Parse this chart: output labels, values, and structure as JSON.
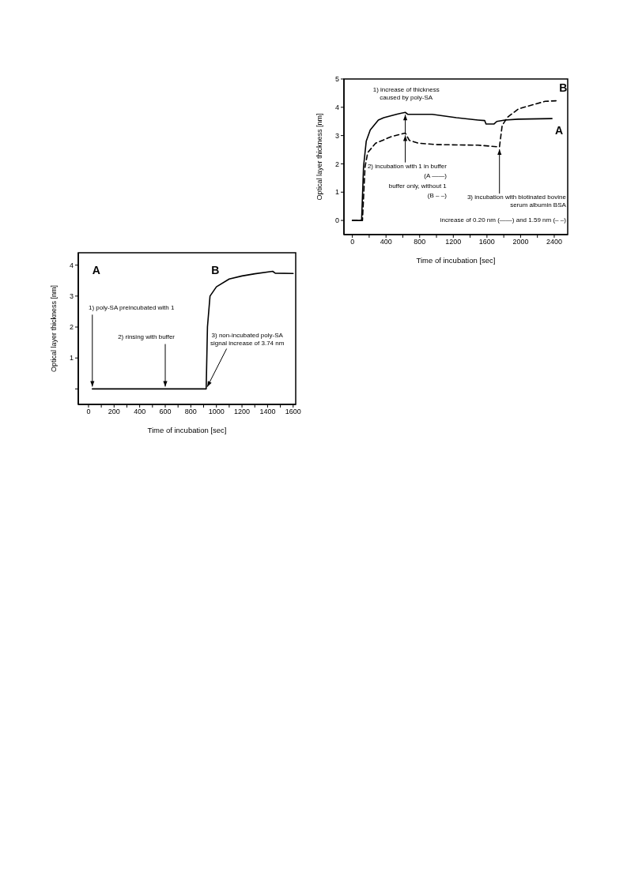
{
  "chart_data": [
    {
      "type": "line",
      "xlabel": "Time of incubation [sec]",
      "ylabel": "Optical layer thickness [nm]",
      "xlim": [
        -100,
        2560
      ],
      "xticks": [
        0,
        {
          "value": 200,
          "label": null
        },
        400,
        {
          "value": 600,
          "label": null
        },
        800,
        {
          "value": 1000,
          "label": null
        },
        1200,
        {
          "value": 1400,
          "label": null
        },
        1600,
        {
          "value": 1800,
          "label": null
        },
        2000,
        {
          "value": 2200,
          "label": null
        },
        2400
      ],
      "ylim": [
        -0.5,
        5
      ],
      "yticks": [
        0,
        1,
        2,
        3,
        4,
        5
      ],
      "grid": false,
      "marker": "none",
      "series": [
        {
          "name": "A",
          "color": "#000000",
          "line_style": "solid",
          "x": [
            0,
            110,
            133,
            165,
            213,
            309,
            373,
            533,
            629,
            661,
            949,
            1237,
            1493,
            1573,
            1589,
            1685,
            1717,
            1813,
            1973,
            2373
          ],
          "values": [
            0,
            0,
            1.9,
            2.8,
            3.2,
            3.55,
            3.63,
            3.76,
            3.82,
            3.75,
            3.75,
            3.63,
            3.55,
            3.53,
            3.41,
            3.41,
            3.5,
            3.55,
            3.58,
            3.6
          ]
        },
        {
          "name": "B",
          "color": "#000000",
          "line_style": "dashed",
          "x": [
            0,
            120,
            151,
            183,
            277,
            469,
            629,
            677,
            789,
            1013,
            1493,
            1749,
            1781,
            1845,
            1973,
            2133,
            2293,
            2421
          ],
          "values": [
            0,
            0,
            1.9,
            2.4,
            2.73,
            2.97,
            3.09,
            2.83,
            2.73,
            2.68,
            2.66,
            2.6,
            3.36,
            3.65,
            3.94,
            4.08,
            4.21,
            4.23
          ]
        }
      ],
      "annotations": [
        {
          "text": "1) increase of thickness caused by poly-SA",
          "x": 629,
          "y": 3.82
        },
        {
          "text": "2) incubation with 1 in buffer",
          "x": 629,
          "y": 3.09
        },
        "(A ——)",
        "buffer only, without 1",
        "(B – –)",
        {
          "text": "3) incubation with biotinated bovine serum albumin BSA",
          "x": 1749,
          "y": 2.6
        },
        "increase of 0.20 nm (——) and 1.59 nm (– –)"
      ]
    },
    {
      "type": "line",
      "xlabel": "Time of incubation [sec]",
      "ylabel": "Optical layer thickness [nm]",
      "xlim": [
        -80,
        1620
      ],
      "xticks": [
        0,
        {
          "value": 100,
          "label": null
        },
        200,
        {
          "value": 300,
          "label": null
        },
        400,
        {
          "value": 500,
          "label": null
        },
        600,
        {
          "value": 700,
          "label": null
        },
        800,
        {
          "value": 900,
          "label": null
        },
        1000,
        {
          "value": 1100,
          "label": null
        },
        1200,
        {
          "value": 1300,
          "label": null
        },
        1400,
        {
          "value": 1500,
          "label": null
        },
        1600
      ],
      "ylim": [
        -0.5,
        4.4
      ],
      "yticks": [
        {
          "value": 0,
          "label": null
        },
        1,
        2,
        3,
        4
      ],
      "grid": false,
      "marker": "none",
      "series": [
        {
          "color": "#000000",
          "line_style": "solid",
          "x": [
            30,
            300,
            600,
            920,
            930,
            950,
            1000,
            1100,
            1200,
            1300,
            1440,
            1460,
            1600
          ],
          "values": [
            0,
            0,
            0,
            0,
            2,
            3,
            3.3,
            3.55,
            3.65,
            3.72,
            3.8,
            3.74,
            3.73
          ]
        }
      ],
      "annotations": [
        "A",
        "B",
        {
          "text": "1) poly-SA preincubated with 1",
          "x": 30,
          "y": 0
        },
        {
          "text": "2) rinsing with buffer",
          "x": 600,
          "y": 0
        },
        {
          "text": "3) non-incubated poly-SA signal increase of 3.74 nm",
          "x": 920,
          "y": 0
        }
      ]
    }
  ]
}
